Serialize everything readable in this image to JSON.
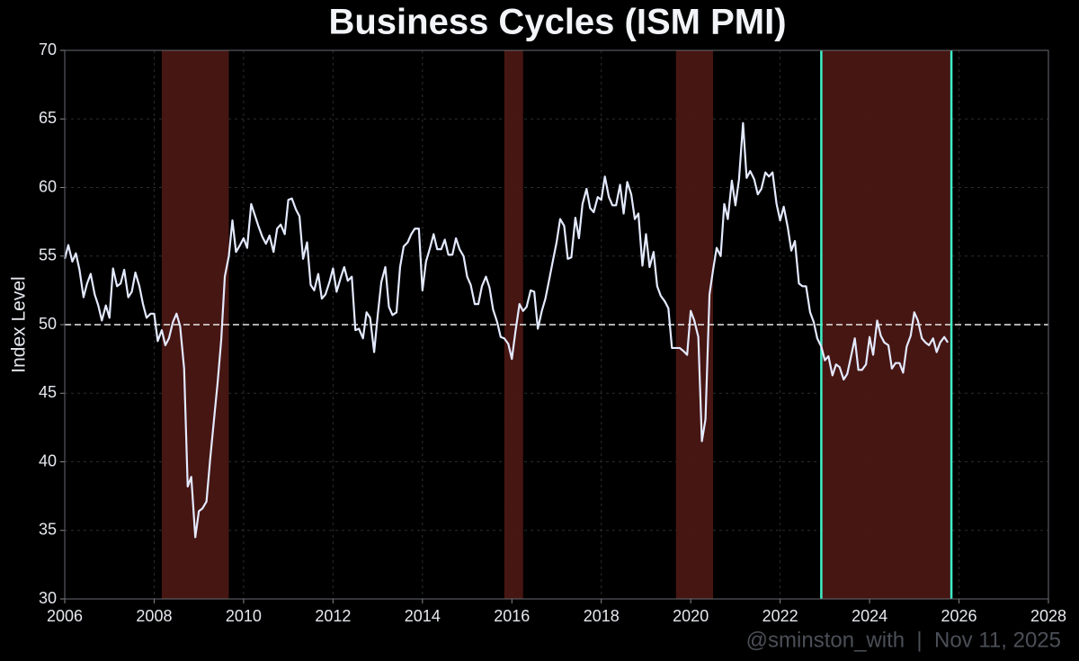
{
  "chart_data": {
    "type": "line",
    "title": "Business Cycles (ISM PMI)",
    "ylabel": "Index Level",
    "watermark": "@sminston_with  |  Nov 11, 2025",
    "xlim": [
      2006,
      2028
    ],
    "xticks": [
      2006,
      2008,
      2010,
      2012,
      2014,
      2016,
      2018,
      2020,
      2022,
      2024,
      2026,
      2028
    ],
    "ylim": [
      30,
      70
    ],
    "yticks": [
      30,
      35,
      40,
      45,
      50,
      55,
      60,
      65,
      70
    ],
    "grid": true,
    "reference_line": 50,
    "shaded_periods": [
      [
        2008.17,
        2009.67
      ],
      [
        2015.83,
        2016.25
      ],
      [
        2019.67,
        2020.5
      ],
      [
        2022.92,
        2025.83
      ]
    ],
    "shade_color": "#4a1714",
    "markers": [
      2022.92,
      2025.83
    ],
    "marker_color": "#3ef0c8",
    "series": [
      {
        "name": "ISM PMI",
        "color": "#e4eaff",
        "x": [
          2006,
          2006.08,
          2006.17,
          2006.25,
          2006.33,
          2006.42,
          2006.5,
          2006.58,
          2006.67,
          2006.75,
          2006.83,
          2006.92,
          2007,
          2007.08,
          2007.17,
          2007.25,
          2007.33,
          2007.42,
          2007.5,
          2007.58,
          2007.67,
          2007.75,
          2007.83,
          2007.92,
          2008,
          2008.08,
          2008.17,
          2008.25,
          2008.33,
          2008.42,
          2008.5,
          2008.58,
          2008.67,
          2008.75,
          2008.83,
          2008.92,
          2009,
          2009.08,
          2009.17,
          2009.25,
          2009.33,
          2009.42,
          2009.5,
          2009.58,
          2009.67,
          2009.75,
          2009.83,
          2009.92,
          2010,
          2010.08,
          2010.17,
          2010.25,
          2010.33,
          2010.42,
          2010.5,
          2010.58,
          2010.67,
          2010.75,
          2010.83,
          2010.92,
          2011,
          2011.08,
          2011.17,
          2011.25,
          2011.33,
          2011.42,
          2011.5,
          2011.58,
          2011.67,
          2011.75,
          2011.83,
          2011.92,
          2012,
          2012.08,
          2012.17,
          2012.25,
          2012.33,
          2012.42,
          2012.5,
          2012.58,
          2012.67,
          2012.75,
          2012.83,
          2012.92,
          2013,
          2013.08,
          2013.17,
          2013.25,
          2013.33,
          2013.42,
          2013.5,
          2013.58,
          2013.67,
          2013.75,
          2013.83,
          2013.92,
          2014,
          2014.08,
          2014.17,
          2014.25,
          2014.33,
          2014.42,
          2014.5,
          2014.58,
          2014.67,
          2014.75,
          2014.83,
          2014.92,
          2015,
          2015.08,
          2015.17,
          2015.25,
          2015.33,
          2015.42,
          2015.5,
          2015.58,
          2015.67,
          2015.75,
          2015.83,
          2015.92,
          2016,
          2016.08,
          2016.17,
          2016.25,
          2016.33,
          2016.42,
          2016.5,
          2016.58,
          2016.67,
          2016.75,
          2016.83,
          2016.92,
          2017,
          2017.08,
          2017.17,
          2017.25,
          2017.33,
          2017.42,
          2017.5,
          2017.58,
          2017.67,
          2017.75,
          2017.83,
          2017.92,
          2018,
          2018.08,
          2018.17,
          2018.25,
          2018.33,
          2018.42,
          2018.5,
          2018.58,
          2018.67,
          2018.75,
          2018.83,
          2018.92,
          2019,
          2019.08,
          2019.17,
          2019.25,
          2019.33,
          2019.42,
          2019.5,
          2019.58,
          2019.67,
          2019.75,
          2019.83,
          2019.92,
          2020,
          2020.08,
          2020.17,
          2020.25,
          2020.33,
          2020.42,
          2020.5,
          2020.58,
          2020.67,
          2020.75,
          2020.83,
          2020.92,
          2021,
          2021.08,
          2021.17,
          2021.25,
          2021.33,
          2021.42,
          2021.5,
          2021.58,
          2021.67,
          2021.75,
          2021.83,
          2021.92,
          2022,
          2022.08,
          2022.17,
          2022.25,
          2022.33,
          2022.42,
          2022.5,
          2022.58,
          2022.67,
          2022.75,
          2022.83,
          2022.92,
          2023,
          2023.08,
          2023.17,
          2023.25,
          2023.33,
          2023.42,
          2023.5,
          2023.58,
          2023.67,
          2023.75,
          2023.83,
          2023.92,
          2024,
          2024.08,
          2024.17,
          2024.25,
          2024.33,
          2024.42,
          2024.5,
          2024.58,
          2024.67,
          2024.75,
          2024.83,
          2024.92,
          2025,
          2025.08,
          2025.17,
          2025.25,
          2025.33,
          2025.42,
          2025.5,
          2025.58,
          2025.67,
          2025.75
        ],
        "values": [
          54.8,
          55.8,
          54.6,
          55.2,
          54.0,
          52.0,
          53.0,
          53.7,
          52.2,
          51.4,
          50.3,
          51.4,
          50.5,
          54.1,
          52.8,
          53.0,
          54.0,
          52.0,
          52.4,
          53.8,
          52.8,
          51.5,
          50.5,
          50.8,
          50.8,
          48.8,
          49.6,
          48.5,
          49.0,
          50.2,
          50.8,
          49.9,
          46.8,
          38.2,
          38.9,
          34.5,
          36.4,
          36.6,
          37.1,
          40.1,
          42.8,
          45.8,
          48.9,
          53.5,
          55.0,
          57.6,
          55.3,
          55.8,
          56.3,
          55.6,
          58.8,
          58.0,
          57.2,
          56.4,
          55.9,
          56.5,
          55.3,
          57.0,
          57.3,
          56.6,
          59.1,
          59.2,
          58.4,
          57.9,
          54.8,
          56.0,
          52.9,
          52.5,
          53.7,
          51.9,
          52.2,
          53.1,
          54.1,
          52.4,
          53.4,
          54.2,
          53.2,
          53.5,
          49.6,
          49.7,
          49.0,
          50.9,
          50.5,
          48.0,
          50.7,
          53.1,
          54.2,
          51.3,
          50.7,
          50.9,
          54.2,
          55.7,
          56.0,
          56.6,
          57.0,
          57.0,
          52.5,
          54.6,
          55.6,
          56.6,
          55.5,
          55.5,
          56.2,
          55.1,
          55.1,
          56.3,
          55.5,
          55.0,
          53.5,
          52.9,
          51.5,
          51.5,
          52.8,
          53.5,
          52.7,
          51.1,
          50.2,
          49.1,
          49.0,
          48.6,
          47.5,
          49.5,
          51.5,
          51.0,
          51.3,
          52.5,
          52.4,
          49.7,
          51.0,
          51.9,
          53.2,
          54.7,
          56.0,
          57.7,
          57.2,
          54.8,
          54.9,
          57.8,
          56.3,
          58.8,
          59.9,
          58.5,
          58.2,
          59.3,
          59.1,
          60.8,
          59.3,
          58.7,
          58.7,
          60.2,
          58.1,
          60.4,
          59.5,
          57.7,
          58.1,
          54.3,
          56.6,
          54.2,
          55.3,
          52.8,
          52.1,
          51.7,
          51.2,
          48.3,
          48.3,
          48.3,
          48.1,
          47.8,
          51.0,
          50.3,
          49.1,
          41.5,
          43.1,
          52.2,
          54.0,
          55.6,
          55.0,
          58.8,
          57.7,
          60.5,
          58.7,
          60.6,
          64.7,
          60.7,
          61.2,
          60.6,
          59.5,
          59.9,
          61.1,
          60.8,
          61.1,
          58.8,
          57.6,
          58.6,
          57.1,
          55.4,
          56.1,
          53.0,
          52.8,
          52.8,
          50.9,
          50.2,
          49.0,
          48.4,
          47.4,
          47.7,
          46.3,
          47.1,
          46.9,
          46.0,
          46.4,
          47.6,
          49.0,
          46.7,
          46.7,
          47.1,
          49.1,
          47.8,
          50.3,
          49.2,
          48.7,
          48.5,
          46.8,
          47.2,
          47.2,
          46.5,
          48.4,
          49.2,
          50.9,
          50.3,
          49.0,
          48.7,
          48.5,
          49.0,
          48.0,
          48.7,
          49.1,
          48.7
        ]
      }
    ]
  }
}
